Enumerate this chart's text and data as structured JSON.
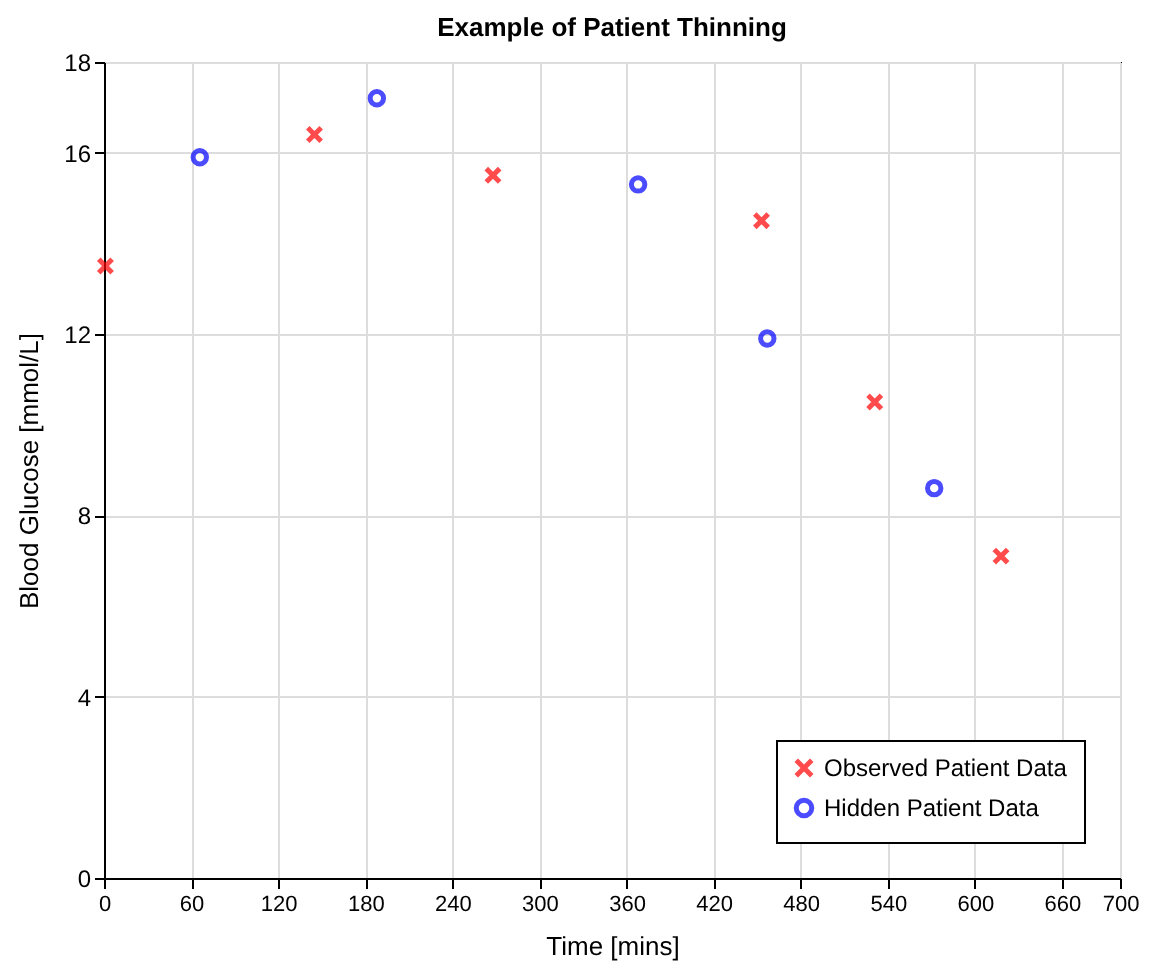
{
  "chart_data": {
    "type": "scatter",
    "title": "Example of Patient Thinning",
    "xlabel": "Time [mins]",
    "ylabel": "Blood Glucose [mmol/L]",
    "xlim": [
      0,
      700
    ],
    "xticks": [
      0,
      60,
      120,
      180,
      240,
      300,
      360,
      420,
      480,
      540,
      600,
      660,
      700
    ],
    "ylim": [
      0,
      18
    ],
    "yticks": [
      0,
      4,
      8,
      12,
      16,
      18
    ],
    "grid": true,
    "legend": "bottom right",
    "series": [
      {
        "name": "Observed Patient Data",
        "color": "#ff0000",
        "marker": "cross",
        "x": [
          1,
          145,
          268,
          453,
          531,
          618
        ],
        "values": [
          13.5,
          16.4,
          15.5,
          14.5,
          10.5,
          7.1
        ]
      },
      {
        "name": "Hidden Patient Data",
        "color": "#0000ff",
        "marker": "circle",
        "x": [
          66,
          188,
          368,
          457,
          572
        ],
        "values": [
          15.9,
          17.2,
          15.3,
          11.9,
          8.6
        ]
      }
    ]
  }
}
